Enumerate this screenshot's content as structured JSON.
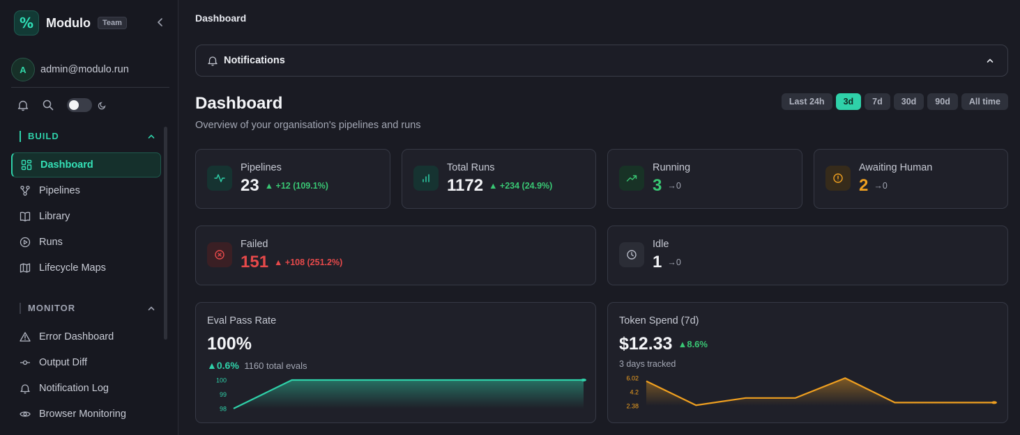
{
  "brand": {
    "name": "Modulo",
    "badge": "Team"
  },
  "user": {
    "initial": "A",
    "email": "admin@modulo.run"
  },
  "breadcrumb": "Dashboard",
  "sections": {
    "build": {
      "label": "BUILD",
      "items": [
        {
          "label": "Dashboard",
          "icon": "grid-icon",
          "active": true
        },
        {
          "label": "Pipelines",
          "icon": "workflow-icon"
        },
        {
          "label": "Library",
          "icon": "book-icon"
        },
        {
          "label": "Runs",
          "icon": "play-circle-icon"
        },
        {
          "label": "Lifecycle Maps",
          "icon": "map-icon"
        }
      ]
    },
    "monitor": {
      "label": "MONITOR",
      "items": [
        {
          "label": "Error Dashboard",
          "icon": "warning-icon"
        },
        {
          "label": "Output Diff",
          "icon": "commit-icon"
        },
        {
          "label": "Notification Log",
          "icon": "bell-icon"
        },
        {
          "label": "Browser Monitoring",
          "icon": "eye-icon"
        }
      ]
    }
  },
  "notifications": {
    "title": "Notifications"
  },
  "page": {
    "title": "Dashboard",
    "subtitle": "Overview of your organisation's pipelines and runs"
  },
  "ranges": [
    {
      "label": "Last 24h"
    },
    {
      "label": "3d",
      "active": true
    },
    {
      "label": "7d"
    },
    {
      "label": "30d"
    },
    {
      "label": "90d"
    },
    {
      "label": "All time"
    }
  ],
  "stats": {
    "pipelines": {
      "label": "Pipelines",
      "value": "23",
      "delta": "▲ +12 (109.1%)"
    },
    "total_runs": {
      "label": "Total Runs",
      "value": "1172",
      "delta": "▲ +234 (24.9%)"
    },
    "running": {
      "label": "Running",
      "value": "3",
      "delta": "→0"
    },
    "awaiting": {
      "label": "Awaiting Human",
      "value": "2",
      "delta": "→0"
    },
    "failed": {
      "label": "Failed",
      "value": "151",
      "delta": "▲ +108 (251.2%)"
    },
    "idle": {
      "label": "Idle",
      "value": "1",
      "delta": "→0"
    }
  },
  "colors": {
    "accent": "#2fd1a9",
    "success": "#39c774",
    "danger": "#e6494a",
    "warning": "#f0a020"
  },
  "chart_data": [
    {
      "type": "area",
      "title": "Eval Pass Rate",
      "headline": "100%",
      "delta": "▲0.6%",
      "note": "1160 total evals",
      "ytick_labels": [
        "100",
        "99",
        "98"
      ],
      "ylim": [
        98,
        100
      ],
      "values": [
        98,
        100,
        100,
        100,
        100,
        100,
        100
      ],
      "color": "#2fd1a9"
    },
    {
      "type": "area",
      "title": "Token Spend (7d)",
      "headline": "$12.33",
      "delta": "▲8.6%",
      "note": "3 days tracked",
      "ytick_labels": [
        "6.02",
        "4.2",
        "2.38"
      ],
      "ylim": [
        2.38,
        6.02
      ],
      "values": [
        5.6,
        2.45,
        3.4,
        3.4,
        6.0,
        2.8,
        2.8,
        2.8
      ],
      "color": "#f0a020"
    }
  ]
}
